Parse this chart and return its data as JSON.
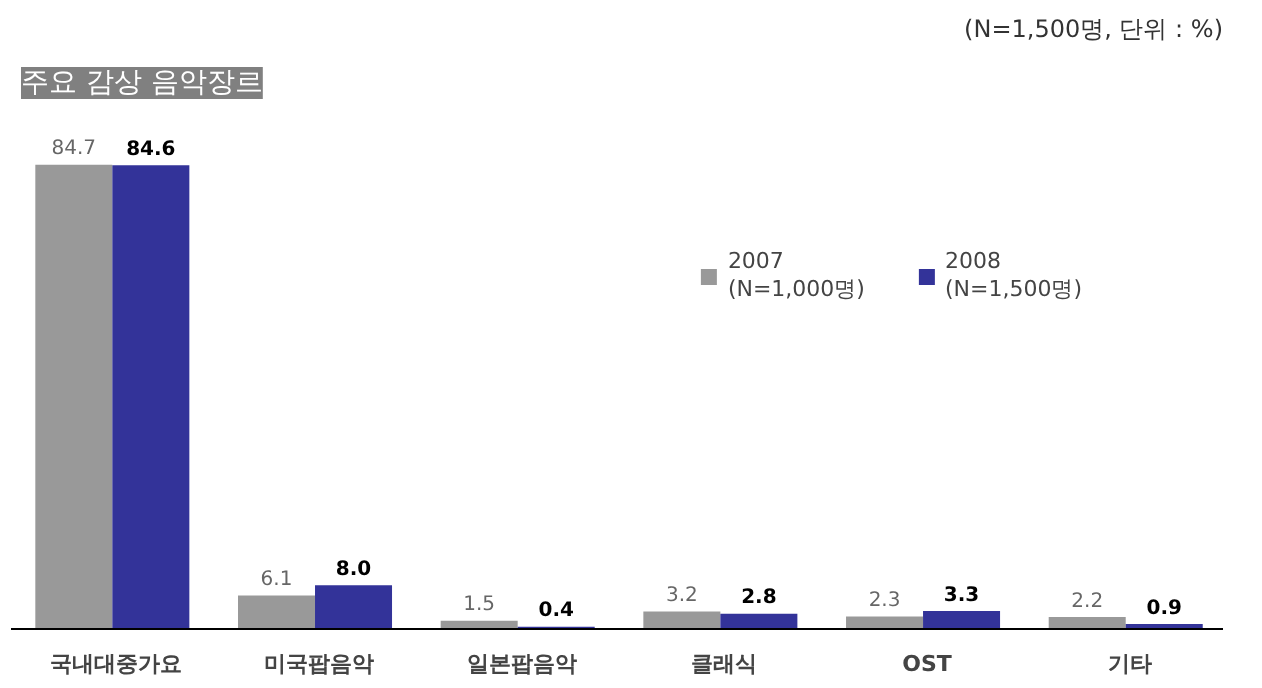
{
  "chart_data": {
    "type": "bar",
    "title": "주요 감상 음악장르",
    "subtitle": "(N=1,500명, 단위 : %)",
    "categories": [
      "국내대중가요",
      "미국팝음악",
      "일본팝음악",
      "클래식",
      "OST",
      "기타"
    ],
    "series": [
      {
        "name": "2007\n(N=1,000명)",
        "color": "#999999",
        "values": [
          84.7,
          6.1,
          1.5,
          3.2,
          2.3,
          2.2
        ],
        "value_labels": [
          "84.7",
          "6.1",
          "1.5",
          "3.2",
          "2.3",
          "2.2"
        ]
      },
      {
        "name": "2008\n(N=1,500명)",
        "color": "#333399",
        "values": [
          84.6,
          8.0,
          0.4,
          2.8,
          3.3,
          0.9
        ],
        "value_labels": [
          "84.6",
          "8.0",
          "0.4",
          "2.8",
          "3.3",
          "0.9"
        ]
      }
    ],
    "legend": "top right",
    "grid": false
  }
}
